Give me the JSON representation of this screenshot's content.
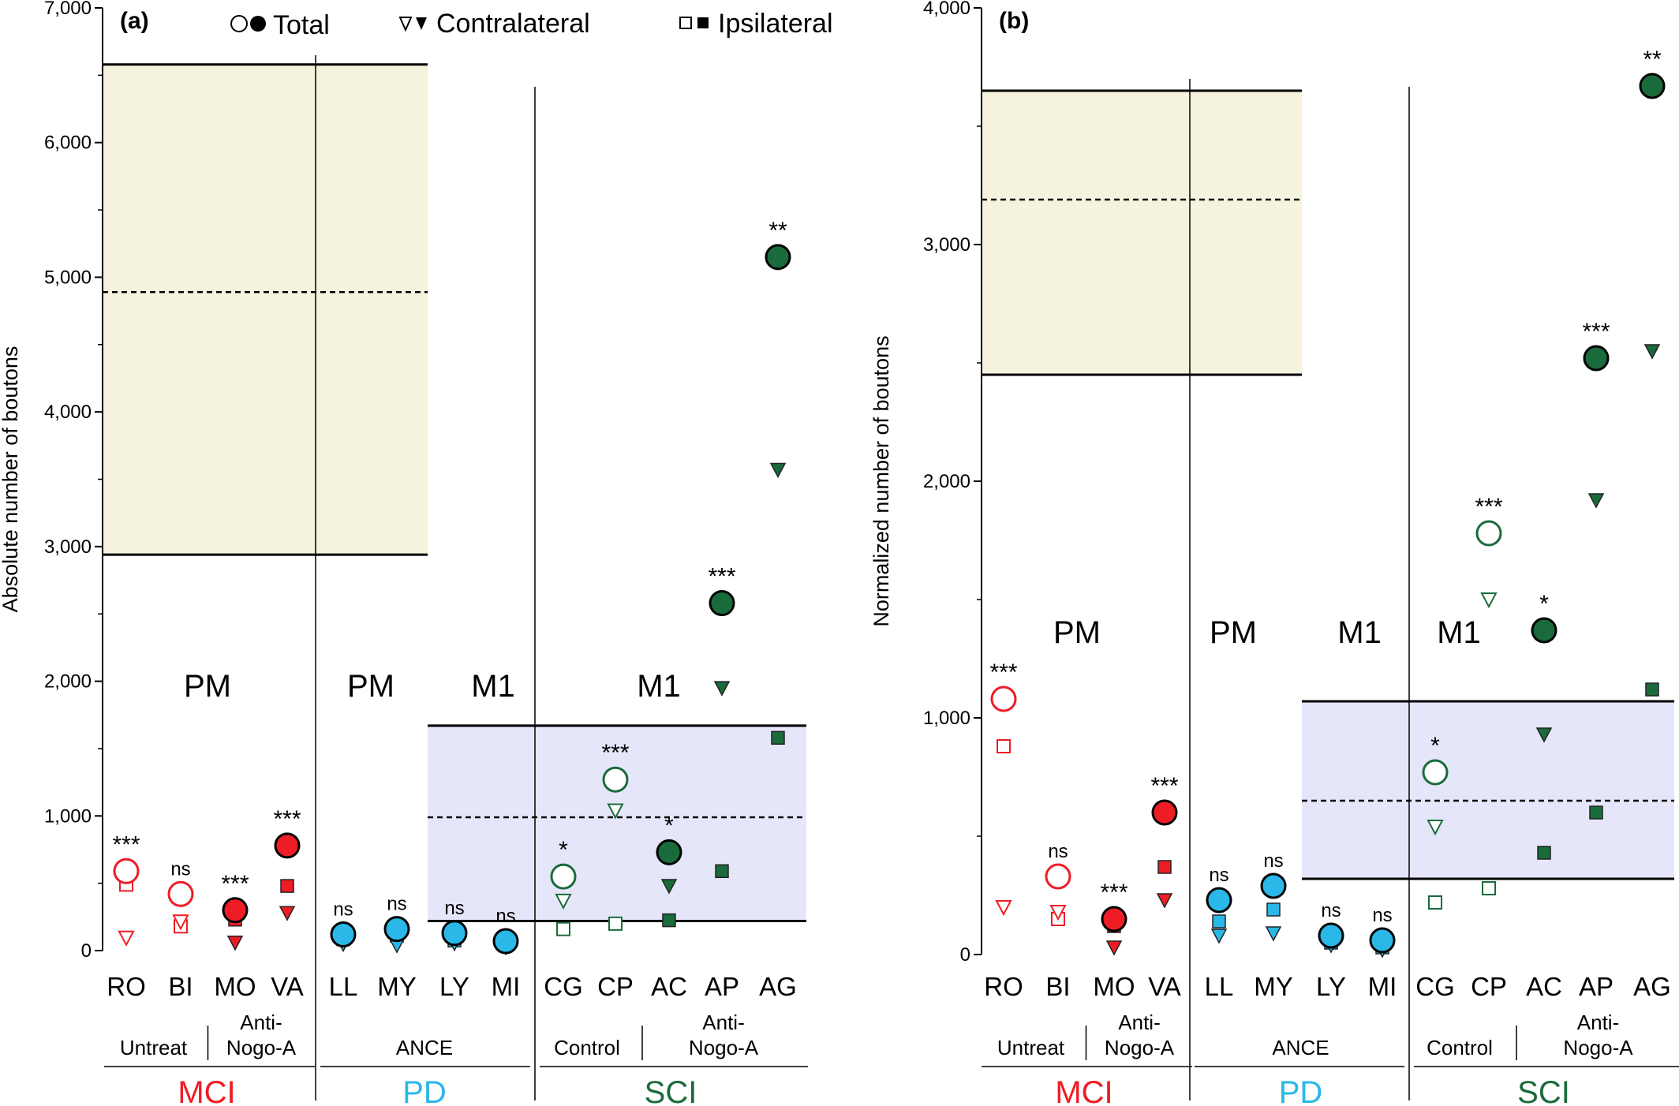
{
  "legend": {
    "total_label": "Total",
    "contralateral_label": "Contralateral",
    "ipsilateral_label": "Ipsilateral"
  },
  "colors": {
    "MCI": "#ee1c25",
    "PD": "#29b8e8",
    "SCI": "#1a6b3c",
    "band_pm": "#f5f3de",
    "band_m1": "#e6e6fa",
    "axis": "#000000"
  },
  "chart_data": [
    {
      "type": "scatter",
      "panel_label": "(a)",
      "ylabel": "Absolute number of boutons",
      "ylim": [
        0,
        7000
      ],
      "yticks": [
        0,
        1000,
        2000,
        3000,
        4000,
        5000,
        6000,
        7000
      ],
      "ytick_labels": [
        "0",
        "1,000",
        "2,000",
        "3,000",
        "4,000",
        "5,000",
        "6,000",
        "7,000"
      ],
      "categories": [
        "RO",
        "BI",
        "MO",
        "VA",
        "LL",
        "MY",
        "LY",
        "MI",
        "CG",
        "CP",
        "AC",
        "AP",
        "AG"
      ],
      "colors": [
        "MCI",
        "MCI",
        "MCI",
        "MCI",
        "PD",
        "PD",
        "PD",
        "PD",
        "SCI",
        "SCI",
        "SCI",
        "SCI",
        "SCI"
      ],
      "filled": [
        false,
        false,
        true,
        true,
        true,
        true,
        true,
        true,
        false,
        false,
        true,
        true,
        true
      ],
      "series": [
        {
          "name": "Total",
          "values": [
            590,
            420,
            300,
            780,
            120,
            160,
            130,
            70,
            550,
            1270,
            730,
            2580,
            5150
          ]
        },
        {
          "name": "Contralateral",
          "values": [
            95,
            215,
            60,
            280,
            50,
            40,
            55,
            25,
            370,
            1040,
            480,
            1950,
            3570
          ]
        },
        {
          "name": "Ipsilateral",
          "values": [
            490,
            180,
            230,
            480,
            85,
            110,
            75,
            40,
            160,
            200,
            225,
            590,
            1580
          ]
        }
      ],
      "significance": [
        "***",
        "ns",
        "***",
        "***",
        "ns",
        "ns",
        "ns",
        "ns",
        "*",
        "***",
        "*",
        "***",
        "**"
      ],
      "region_labels": [
        "PM",
        "PM",
        "M1",
        "M1"
      ],
      "bands": [
        {
          "region": "PM",
          "low": 2940,
          "mean": 4890,
          "high": 6580
        },
        {
          "region": "M1",
          "low": 220,
          "mean": 990,
          "high": 1670
        }
      ],
      "subgroup_labels": [
        "Untreat",
        "Anti-\nNogo-A",
        "ANCE",
        "Control",
        "Anti-\nNogo-A"
      ],
      "group_labels": [
        "MCI",
        "PD",
        "SCI"
      ]
    },
    {
      "type": "scatter",
      "panel_label": "(b)",
      "ylabel": "Normalized number of boutons",
      "ylim": [
        0,
        4000
      ],
      "yticks": [
        0,
        1000,
        2000,
        3000,
        4000
      ],
      "ytick_labels": [
        "0",
        "1,000",
        "2,000",
        "3,000",
        "4,000"
      ],
      "categories": [
        "RO",
        "BI",
        "MO",
        "VA",
        "LL",
        "MY",
        "LY",
        "MI",
        "CG",
        "CP",
        "AC",
        "AP",
        "AG"
      ],
      "colors": [
        "MCI",
        "MCI",
        "MCI",
        "MCI",
        "PD",
        "PD",
        "PD",
        "PD",
        "SCI",
        "SCI",
        "SCI",
        "SCI",
        "SCI"
      ],
      "filled": [
        false,
        false,
        true,
        true,
        true,
        true,
        true,
        true,
        false,
        false,
        true,
        true,
        true
      ],
      "series": [
        {
          "name": "Total",
          "values": [
            1080,
            330,
            150,
            600,
            230,
            290,
            80,
            60,
            770,
            1780,
            1370,
            2520,
            3670
          ]
        },
        {
          "name": "Contralateral",
          "values": [
            200,
            180,
            30,
            230,
            80,
            90,
            40,
            20,
            540,
            1500,
            930,
            1920,
            2550
          ]
        },
        {
          "name": "Ipsilateral",
          "values": [
            880,
            150,
            120,
            370,
            140,
            190,
            50,
            30,
            220,
            280,
            430,
            600,
            1120
          ]
        }
      ],
      "significance": [
        "***",
        "ns",
        "***",
        "***",
        "ns",
        "ns",
        "ns",
        "ns",
        "*",
        "***",
        "*",
        "***",
        "**"
      ],
      "region_labels": [
        "PM",
        "PM",
        "M1",
        "M1"
      ],
      "bands": [
        {
          "region": "PM",
          "low": 2450,
          "mean": 3190,
          "high": 3650
        },
        {
          "region": "M1",
          "low": 320,
          "mean": 650,
          "high": 1070
        }
      ],
      "subgroup_labels": [
        "Untreat",
        "Anti-\nNogo-A",
        "ANCE",
        "Control",
        "Anti-\nNogo-A"
      ],
      "group_labels": [
        "MCI",
        "PD",
        "SCI"
      ]
    }
  ]
}
